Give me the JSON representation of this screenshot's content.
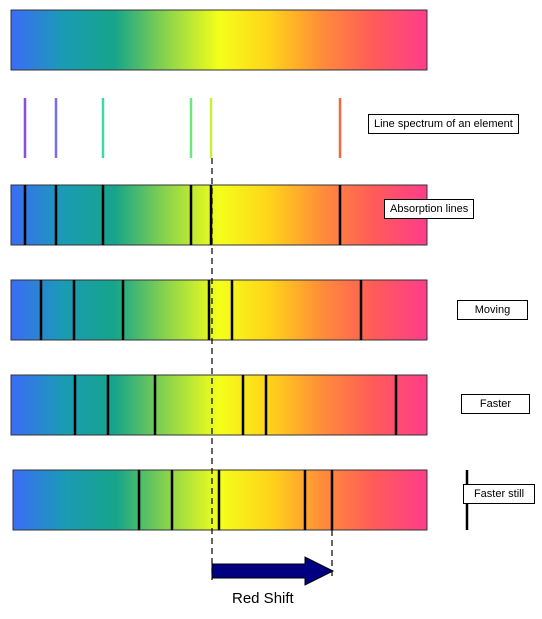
{
  "labels": {
    "line_spectrum": "Line spectrum of an element",
    "absorption": "Absorption lines",
    "moving": "Moving",
    "faster": "Faster",
    "faster_still": "Faster still"
  },
  "caption": "Red Shift",
  "colors": {
    "spectrum_stops": [
      "#3b6cf6",
      "#1a9bb5",
      "#16a58a",
      "#8cd44a",
      "#f4ff1a",
      "#ffd21a",
      "#ff8b3a",
      "#ff5a5a",
      "#ff3c8c"
    ],
    "absorption_line": "#000000",
    "arrow": "#000080",
    "emission_lines": [
      "#8a4fd8",
      "#7a6ee0",
      "#3fd6a8",
      "#6ee87a",
      "#c6f23c",
      "#f06a3a"
    ]
  }
}
